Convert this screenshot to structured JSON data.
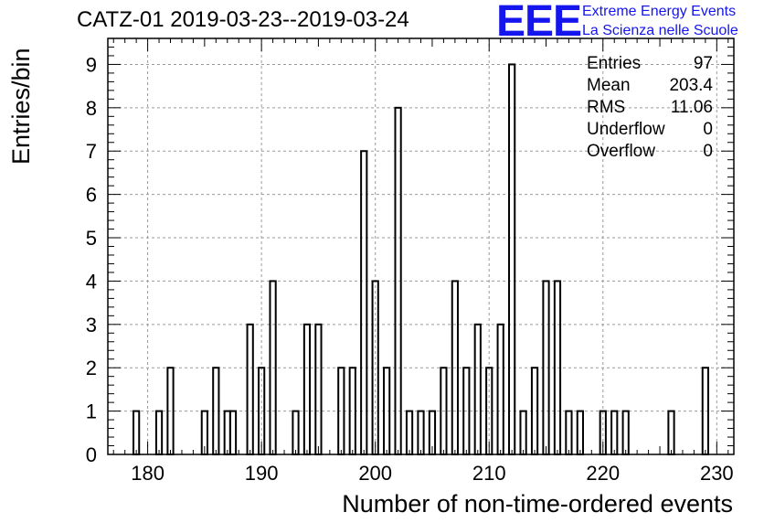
{
  "title": "CATZ-01 2019-03-23--2019-03-24",
  "logo": {
    "mark": "EEE",
    "line1": "Extreme Energy Events",
    "line2": "La Scienza nelle Scuole",
    "color": "#1515ee"
  },
  "stats": [
    {
      "label": "Entries",
      "value": "97"
    },
    {
      "label": "Mean",
      "value": "203.4"
    },
    {
      "label": "RMS",
      "value": "11.06"
    },
    {
      "label": "Underflow",
      "value": "0"
    },
    {
      "label": "Overflow",
      "value": "0"
    }
  ],
  "chart_data": {
    "type": "bar",
    "subtype": "histogram",
    "xlabel": "Number of non-time-ordered events",
    "ylabel": "Entries/bin",
    "xlim": [
      176.5,
      231.5
    ],
    "ylim": [
      0,
      9.6
    ],
    "grid": true,
    "x_ticks": [
      180,
      190,
      200,
      210,
      220,
      230
    ],
    "y_ticks": [
      0,
      1,
      2,
      3,
      4,
      5,
      6,
      7,
      8,
      9
    ],
    "bin_width": 0.5,
    "bins": [
      {
        "x": 179,
        "count": 1
      },
      {
        "x": 181,
        "count": 1
      },
      {
        "x": 182,
        "count": 2
      },
      {
        "x": 185,
        "count": 1
      },
      {
        "x": 186,
        "count": 2
      },
      {
        "x": 187,
        "count": 1
      },
      {
        "x": 187.5,
        "count": 1
      },
      {
        "x": 189,
        "count": 3
      },
      {
        "x": 190,
        "count": 2
      },
      {
        "x": 191,
        "count": 4
      },
      {
        "x": 193,
        "count": 1
      },
      {
        "x": 194,
        "count": 3
      },
      {
        "x": 195,
        "count": 3
      },
      {
        "x": 197,
        "count": 2
      },
      {
        "x": 198,
        "count": 2
      },
      {
        "x": 199,
        "count": 7
      },
      {
        "x": 200,
        "count": 4
      },
      {
        "x": 201,
        "count": 2
      },
      {
        "x": 202,
        "count": 8
      },
      {
        "x": 203,
        "count": 1
      },
      {
        "x": 204,
        "count": 1
      },
      {
        "x": 205,
        "count": 1
      },
      {
        "x": 206,
        "count": 2
      },
      {
        "x": 207,
        "count": 4
      },
      {
        "x": 208,
        "count": 2
      },
      {
        "x": 209,
        "count": 3
      },
      {
        "x": 210,
        "count": 2
      },
      {
        "x": 211,
        "count": 3
      },
      {
        "x": 212,
        "count": 9
      },
      {
        "x": 213,
        "count": 1
      },
      {
        "x": 214,
        "count": 2
      },
      {
        "x": 215,
        "count": 4
      },
      {
        "x": 216,
        "count": 4
      },
      {
        "x": 217,
        "count": 1
      },
      {
        "x": 218,
        "count": 1
      },
      {
        "x": 220,
        "count": 1
      },
      {
        "x": 221,
        "count": 1
      },
      {
        "x": 222,
        "count": 1
      },
      {
        "x": 226,
        "count": 1
      },
      {
        "x": 229,
        "count": 2
      }
    ]
  }
}
